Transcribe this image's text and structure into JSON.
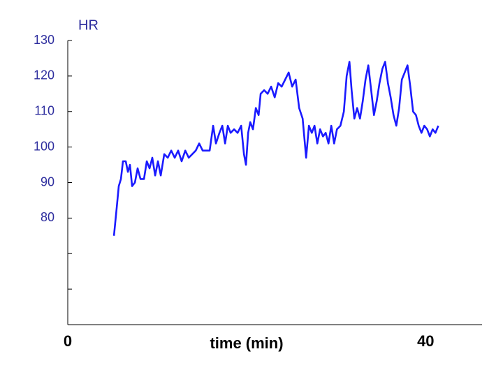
{
  "chart_data": {
    "type": "line",
    "title": "HR",
    "x_label": "time (min)",
    "xlim": [
      0,
      46.3
    ],
    "xticks": [
      0,
      40
    ],
    "ylim": [
      50,
      130
    ],
    "yticks": [
      80,
      90,
      100,
      110,
      120,
      130
    ],
    "yminor_ticks": [
      60,
      70
    ],
    "x": [
      5.16,
      5.47,
      5.7,
      5.94,
      6.17,
      6.48,
      6.72,
      6.95,
      7.19,
      7.5,
      7.81,
      8.13,
      8.52,
      8.83,
      9.14,
      9.45,
      9.77,
      10.08,
      10.39,
      10.78,
      11.17,
      11.56,
      11.95,
      12.34,
      12.73,
      13.13,
      13.52,
      13.91,
      14.3,
      14.69,
      15.08,
      15.47,
      15.86,
      16.25,
      16.56,
      16.95,
      17.27,
      17.58,
      17.89,
      18.2,
      18.59,
      18.98,
      19.38,
      19.69,
      19.92,
      20.16,
      20.39,
      20.7,
      21.02,
      21.33,
      21.56,
      21.95,
      22.34,
      22.73,
      23.13,
      23.52,
      23.91,
      24.3,
      24.69,
      25.08,
      25.47,
      25.86,
      26.25,
      26.64,
      26.95,
      27.27,
      27.58,
      27.89,
      28.2,
      28.52,
      28.83,
      29.14,
      29.45,
      29.77,
      30.08,
      30.47,
      30.86,
      31.17,
      31.48,
      31.72,
      32.03,
      32.34,
      32.66,
      32.97,
      33.28,
      33.59,
      33.91,
      34.22,
      34.53,
      34.84,
      35.16,
      35.47,
      35.78,
      36.09,
      36.41,
      36.72,
      37.03,
      37.34,
      37.66,
      37.97,
      38.28,
      38.59,
      38.91,
      39.22,
      39.53,
      39.84,
      40.16,
      40.47,
      40.78,
      41.09,
      41.41
    ],
    "series": [
      {
        "name": "HR",
        "color": "#1a1aff",
        "values": [
          75,
          83,
          89,
          91,
          96,
          96,
          93,
          95,
          89,
          90,
          94,
          91,
          91,
          96,
          94,
          97,
          92,
          96,
          92,
          98,
          97,
          99,
          97,
          99,
          96,
          99,
          97,
          98,
          99,
          101,
          99,
          99,
          99,
          106,
          101,
          104,
          106,
          101,
          106,
          104,
          105,
          104,
          106,
          98,
          95,
          104,
          107,
          105,
          111,
          109,
          115,
          116,
          115,
          117,
          114,
          118,
          117,
          119,
          121,
          117,
          119,
          111,
          108,
          97,
          106,
          104,
          106,
          101,
          105,
          103,
          104,
          101,
          106,
          101,
          105,
          106,
          110,
          120,
          124,
          116,
          108,
          111,
          108,
          113,
          119,
          123,
          116,
          109,
          113,
          118,
          122,
          124,
          118,
          114,
          109,
          106,
          111,
          119,
          121,
          123,
          117,
          110,
          109,
          106,
          104,
          106,
          105,
          103,
          105,
          104,
          106
        ]
      }
    ]
  }
}
